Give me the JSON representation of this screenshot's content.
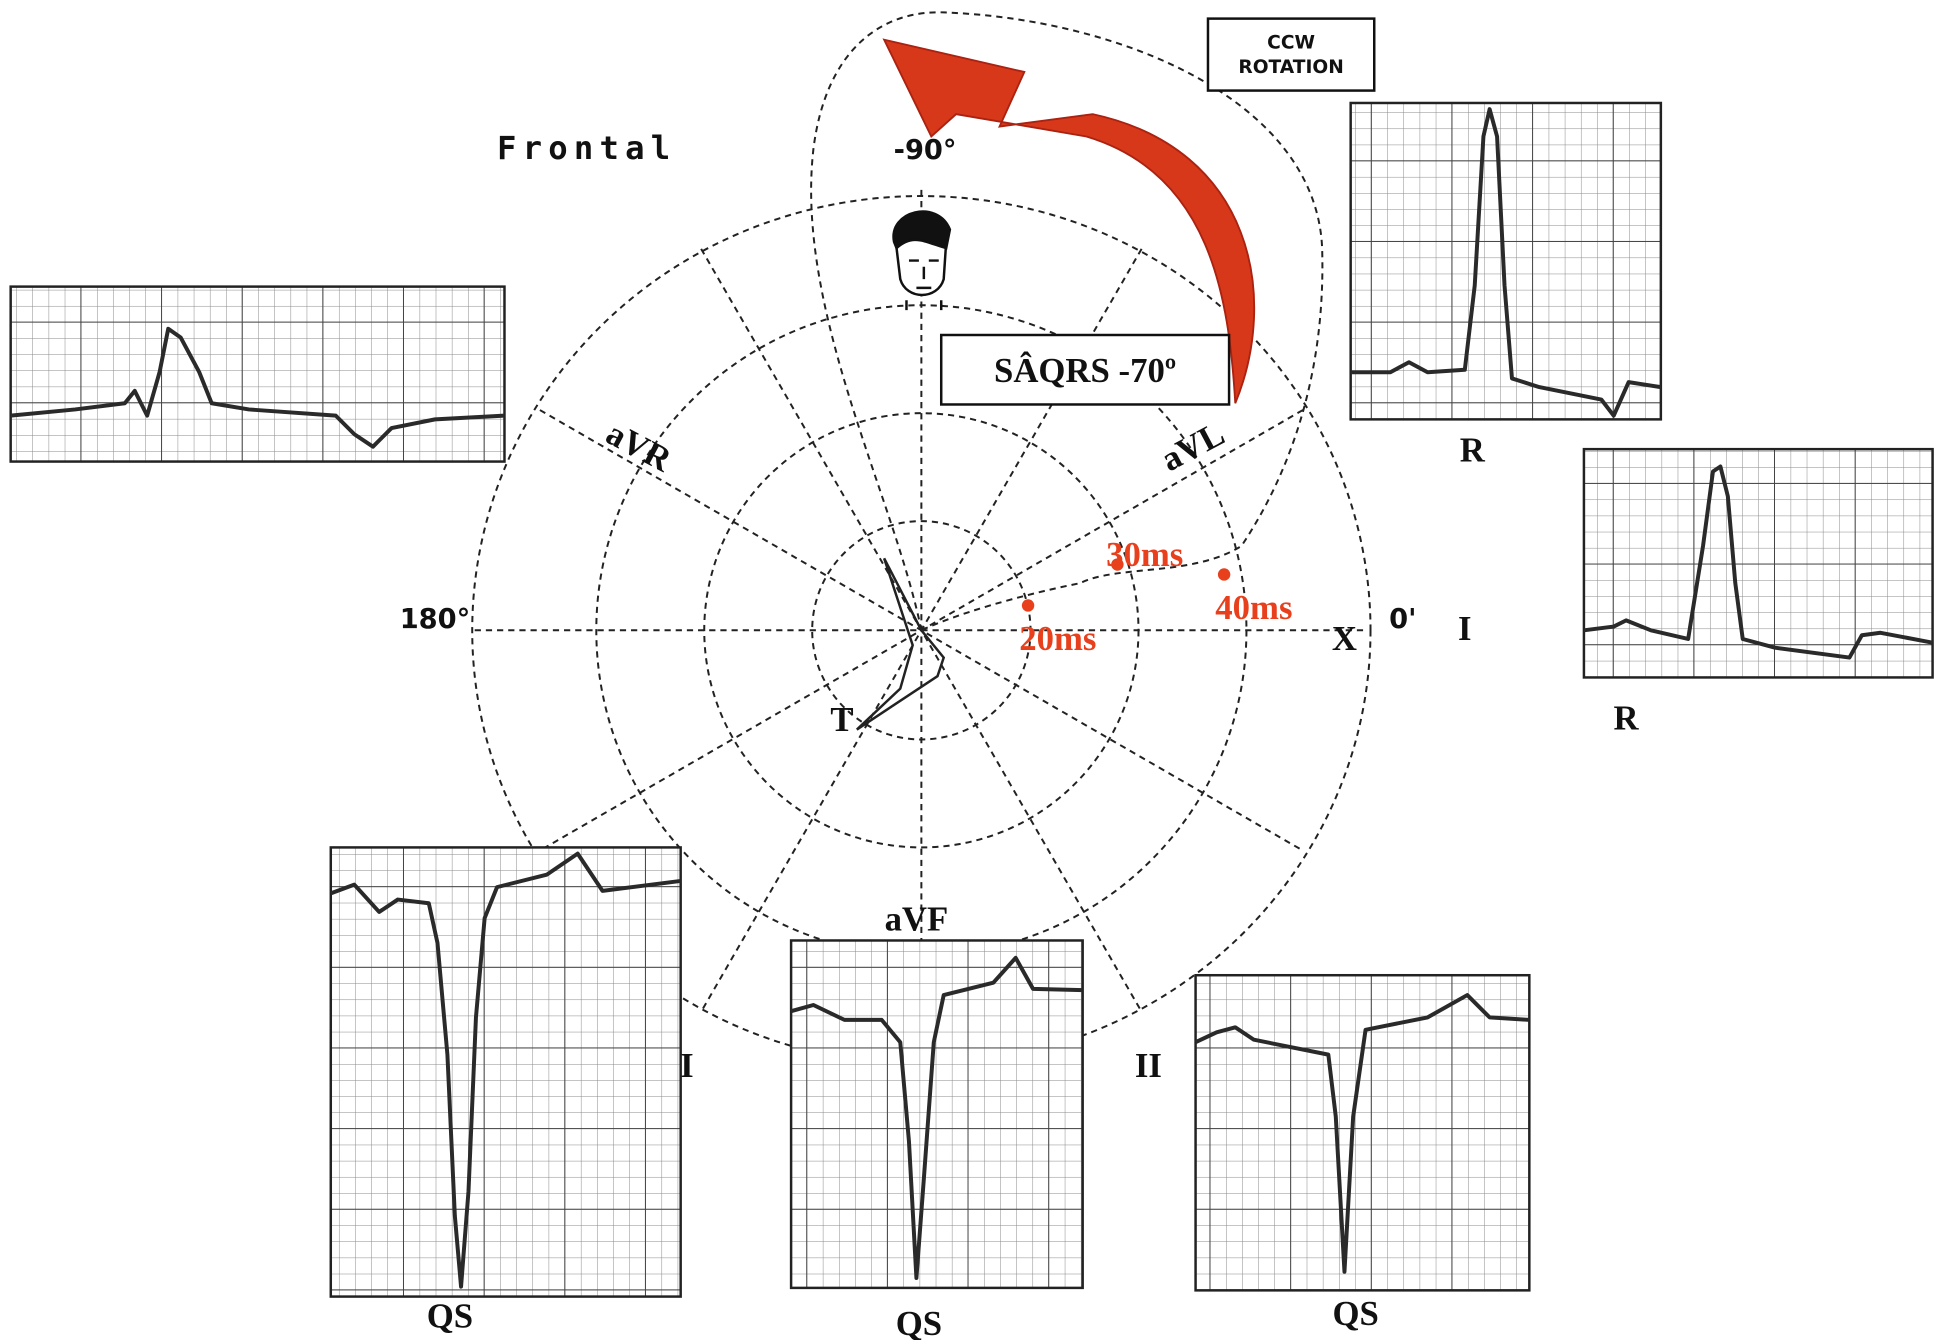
{
  "title": "Frontal",
  "rotation": [
    "CCW",
    "ROTATION"
  ],
  "axis_box": "SÂQRS -70º",
  "angles": [
    "-90°",
    "180°",
    "0'"
  ],
  "leads": {
    "avr": "aVR",
    "avl": "aVL",
    "avf": "aVF",
    "x": "X",
    "i": "I",
    "ii": "II",
    "iii": "I"
  },
  "times": [
    "20ms",
    "30ms",
    "40ms"
  ],
  "t_loop": "T",
  "waves": [
    "R",
    "R",
    "QS",
    "QS",
    "QS"
  ]
}
